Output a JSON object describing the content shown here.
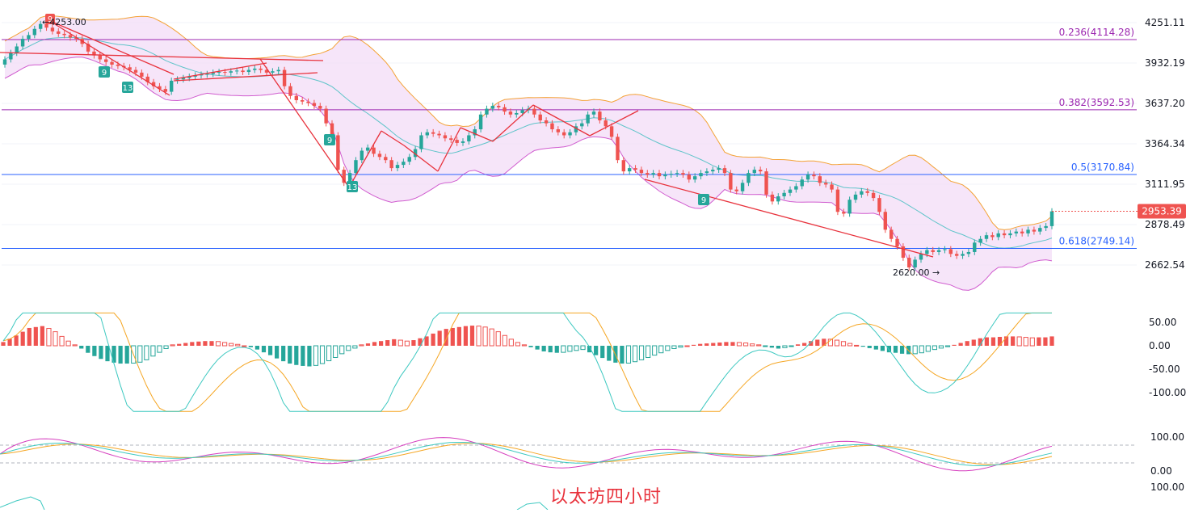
{
  "caption": "以太坊四小时",
  "colors": {
    "bull": "#26a69a",
    "bear": "#ef5350",
    "bb_upper": "#f4a236",
    "bb_mid": "#5ec4c9",
    "bb_fill": "#f3dcf7",
    "fib_purple": "#9c27b0",
    "fib_blue": "#2962ff",
    "trend": "#e8323c",
    "macd_dif": "#3cc8c0",
    "macd_dea": "#f5a623",
    "kdj_k": "#3cc8c0",
    "kdj_d": "#f5a623",
    "kdj_j": "#d63fbf",
    "grid": "#f0f3fa",
    "price_tag": "#ef5350"
  },
  "price_axis": {
    "ticks": [
      "4251.11",
      "3932.19",
      "3637.20",
      "3364.34",
      "3111.95",
      "2878.49",
      "2662.54"
    ],
    "last_price": "2953.39"
  },
  "fib_levels": [
    {
      "label": "0.236(4114.28)",
      "price": 4114.28,
      "color": "purple"
    },
    {
      "label": "0.382(3592.53)",
      "price": 3592.53,
      "color": "purple"
    },
    {
      "label": "0.5(3170.84)",
      "price": 3170.84,
      "color": "blue"
    },
    {
      "label": "0.618(2749.14)",
      "price": 2749.14,
      "color": "blue"
    }
  ],
  "annotations": {
    "high_label": "4253.00",
    "low_label": "2620.00",
    "td_counts": [
      "9",
      "9",
      "13",
      "9",
      "13",
      "9"
    ]
  },
  "macd_axis": {
    "ticks": [
      "50.00",
      "0.00",
      "-50.00",
      "-100.00"
    ]
  },
  "kdj_axis": {
    "ticks": [
      "100.00",
      "0.00",
      "100.00"
    ]
  },
  "chart_data": [
    {
      "type": "candlestick",
      "title": "",
      "y_scale": "log",
      "ylim": [
        2600,
        4300
      ],
      "high": 4253.0,
      "low": 2620.0,
      "last": 2953.39,
      "indicators": [
        "Bollinger Bands",
        "Fibonacci retracement",
        "TD Sequential"
      ],
      "closes": [
        3960,
        4010,
        4060,
        4120,
        4150,
        4200,
        4240,
        4210,
        4180,
        4160,
        4150,
        4130,
        4120,
        4080,
        4020,
        3990,
        3960,
        3940,
        3920,
        3910,
        3900,
        3880,
        3860,
        3830,
        3790,
        3760,
        3740,
        3720,
        3800,
        3810,
        3820,
        3830,
        3840,
        3845,
        3850,
        3860,
        3865,
        3860,
        3870,
        3875,
        3865,
        3880,
        3890,
        3880,
        3860,
        3870,
        3880,
        3760,
        3690,
        3660,
        3650,
        3640,
        3620,
        3600,
        3500,
        3420,
        3200,
        3120,
        3180,
        3260,
        3320,
        3340,
        3300,
        3280,
        3260,
        3210,
        3230,
        3250,
        3280,
        3330,
        3420,
        3440,
        3430,
        3420,
        3400,
        3390,
        3370,
        3380,
        3420,
        3460,
        3560,
        3600,
        3620,
        3610,
        3580,
        3560,
        3570,
        3590,
        3600,
        3560,
        3520,
        3500,
        3460,
        3440,
        3420,
        3440,
        3480,
        3500,
        3560,
        3580,
        3520,
        3480,
        3410,
        3260,
        3190,
        3210,
        3200,
        3180,
        3170,
        3180,
        3160,
        3170,
        3175,
        3180,
        3170,
        3140,
        3160,
        3180,
        3190,
        3200,
        3210,
        3180,
        3080,
        3070,
        3120,
        3180,
        3200,
        3190,
        3050,
        3010,
        3040,
        3060,
        3080,
        3100,
        3140,
        3170,
        3160,
        3120,
        3110,
        3080,
        2950,
        2940,
        3020,
        3050,
        3070,
        3060,
        3030,
        2950,
        2850,
        2800,
        2760,
        2700,
        2650,
        2690,
        2720,
        2740,
        2730,
        2740,
        2745,
        2720,
        2710,
        2720,
        2730,
        2780,
        2800,
        2820,
        2810,
        2830,
        2820,
        2830,
        2840,
        2830,
        2850,
        2840,
        2860,
        2870,
        2953
      ]
    },
    {
      "type": "bar",
      "name": "MACD",
      "ylim": [
        -150,
        75
      ],
      "histogram": [
        8,
        15,
        22,
        30,
        38,
        40,
        42,
        37,
        30,
        20,
        10,
        2,
        -6,
        -15,
        -22,
        -28,
        -33,
        -36,
        -38,
        -38,
        -37,
        -35,
        -30,
        -22,
        -14,
        -6,
        2,
        4,
        6,
        8,
        9,
        10,
        10,
        9,
        7,
        5,
        3,
        0,
        -3,
        -8,
        -14,
        -20,
        -27,
        -33,
        -38,
        -41,
        -43,
        -44,
        -42,
        -38,
        -32,
        -25,
        -17,
        -10,
        -5,
        2,
        5,
        8,
        10,
        12,
        14,
        12,
        10,
        12,
        16,
        20,
        26,
        32,
        36,
        38,
        40,
        42,
        43,
        42,
        40,
        36,
        30,
        22,
        14,
        7,
        2,
        -3,
        -8,
        -12,
        -14,
        -15,
        -14,
        -12,
        -10,
        -8,
        -14,
        -20,
        -26,
        -32,
        -36,
        -38,
        -37,
        -34,
        -30,
        -25,
        -20,
        -15,
        -10,
        -6,
        -3,
        0,
        2,
        4,
        5,
        6,
        7,
        8,
        8,
        7,
        6,
        4,
        2,
        -1,
        -4,
        -6,
        -4,
        -1,
        3,
        6,
        10,
        13,
        15,
        14,
        12,
        9,
        5,
        1,
        -2,
        -5,
        -8,
        -11,
        -14,
        -15,
        -17,
        -18,
        -17,
        -15,
        -12,
        -8,
        -5,
        -2,
        2,
        6,
        10,
        13,
        16,
        18,
        18,
        19,
        20,
        20,
        19,
        18,
        17,
        18,
        18,
        20
      ]
    },
    {
      "type": "line",
      "name": "KDJ",
      "ylim": [
        -20,
        110
      ],
      "note": "K, D, J oscillators"
    }
  ]
}
